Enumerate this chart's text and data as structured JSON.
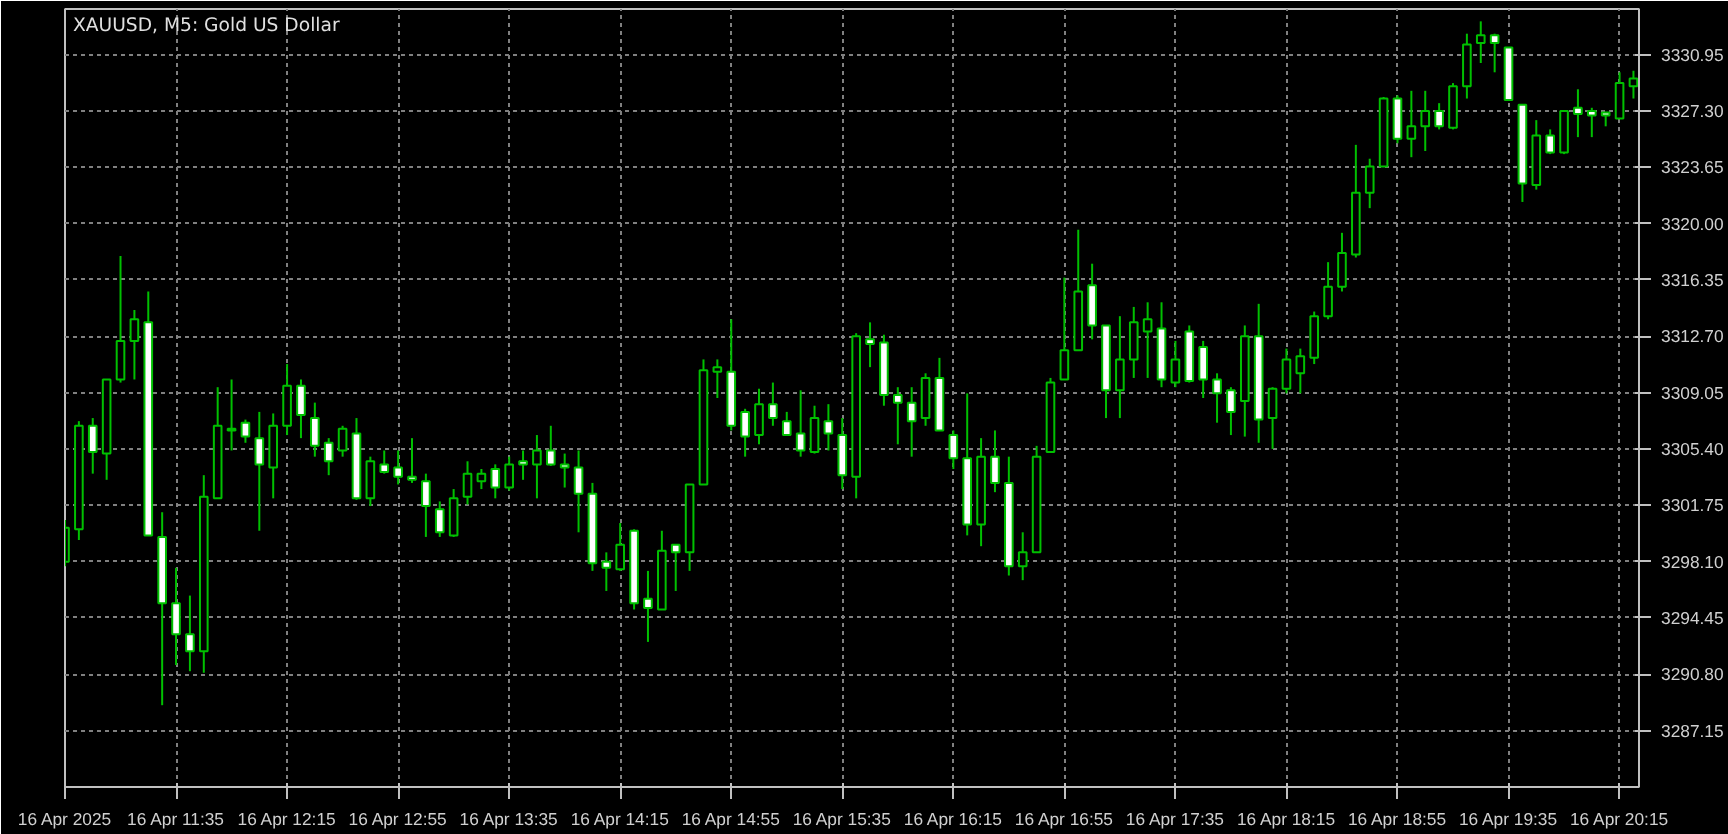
{
  "chart_data": {
    "type": "candlestick",
    "title": "XAUUSD, M5:  Gold US Dollar",
    "color": "#00c000",
    "x": [
      "2025-04-16T10:55",
      "2025-04-16T11:00",
      "2025-04-16T11:05",
      "2025-04-16T11:10",
      "2025-04-16T11:15",
      "2025-04-16T11:20",
      "2025-04-16T11:25",
      "2025-04-16T11:30",
      "2025-04-16T11:35",
      "2025-04-16T11:40",
      "2025-04-16T11:45",
      "2025-04-16T11:50",
      "2025-04-16T11:55",
      "2025-04-16T12:00",
      "2025-04-16T12:05",
      "2025-04-16T12:10",
      "2025-04-16T12:15",
      "2025-04-16T12:20",
      "2025-04-16T12:25",
      "2025-04-16T12:30",
      "2025-04-16T12:35",
      "2025-04-16T12:40",
      "2025-04-16T12:45",
      "2025-04-16T12:50",
      "2025-04-16T12:55",
      "2025-04-16T13:00",
      "2025-04-16T13:05",
      "2025-04-16T13:10",
      "2025-04-16T13:15",
      "2025-04-16T13:20",
      "2025-04-16T13:25",
      "2025-04-16T13:30",
      "2025-04-16T13:35",
      "2025-04-16T13:40",
      "2025-04-16T13:45",
      "2025-04-16T13:50",
      "2025-04-16T13:55",
      "2025-04-16T14:00",
      "2025-04-16T14:05",
      "2025-04-16T14:10",
      "2025-04-16T14:15",
      "2025-04-16T14:20",
      "2025-04-16T14:25",
      "2025-04-16T14:30",
      "2025-04-16T14:35",
      "2025-04-16T14:40",
      "2025-04-16T14:45",
      "2025-04-16T14:50",
      "2025-04-16T14:55",
      "2025-04-16T15:00",
      "2025-04-16T15:05",
      "2025-04-16T15:10",
      "2025-04-16T15:15",
      "2025-04-16T15:20",
      "2025-04-16T15:25",
      "2025-04-16T15:30",
      "2025-04-16T15:35",
      "2025-04-16T15:40",
      "2025-04-16T15:45",
      "2025-04-16T15:50",
      "2025-04-16T15:55",
      "2025-04-16T16:00",
      "2025-04-16T16:05",
      "2025-04-16T16:10",
      "2025-04-16T16:15",
      "2025-04-16T16:20",
      "2025-04-16T16:25",
      "2025-04-16T16:30",
      "2025-04-16T16:35",
      "2025-04-16T16:40",
      "2025-04-16T16:45",
      "2025-04-16T16:50",
      "2025-04-16T16:55",
      "2025-04-16T17:00",
      "2025-04-16T17:05",
      "2025-04-16T17:10",
      "2025-04-16T17:15",
      "2025-04-16T17:20",
      "2025-04-16T17:25",
      "2025-04-16T17:30",
      "2025-04-16T17:35",
      "2025-04-16T17:40",
      "2025-04-16T17:45",
      "2025-04-16T17:50",
      "2025-04-16T17:55",
      "2025-04-16T18:00",
      "2025-04-16T18:05",
      "2025-04-16T18:10",
      "2025-04-16T18:15",
      "2025-04-16T18:20",
      "2025-04-16T18:25",
      "2025-04-16T18:30",
      "2025-04-16T18:35",
      "2025-04-16T18:40",
      "2025-04-16T18:45",
      "2025-04-16T18:50",
      "2025-04-16T18:55",
      "2025-04-16T19:00",
      "2025-04-16T19:05",
      "2025-04-16T19:10",
      "2025-04-16T19:15",
      "2025-04-16T19:20",
      "2025-04-16T19:25",
      "2025-04-16T19:30",
      "2025-04-16T19:35",
      "2025-04-16T19:40",
      "2025-04-16T19:45",
      "2025-04-16T19:50",
      "2025-04-16T19:55",
      "2025-04-16T20:00",
      "2025-04-16T20:05",
      "2025-04-16T20:10",
      "2025-04-16T20:15",
      "2025-04-16T20:20"
    ],
    "ohlc": [
      [
        3298.1,
        3300.8,
        3297.8,
        3300.3
      ],
      [
        3300.2,
        3307.2,
        3299.5,
        3306.9
      ],
      [
        3306.9,
        3307.4,
        3303.8,
        3305.2
      ],
      [
        3305.1,
        3309.9,
        3303.4,
        3309.9
      ],
      [
        3309.9,
        3317.9,
        3309.7,
        3312.4
      ],
      [
        3312.4,
        3314.4,
        3309.9,
        3313.8
      ],
      [
        3313.6,
        3315.6,
        3299.8,
        3299.8
      ],
      [
        3299.7,
        3301.3,
        3288.8,
        3295.4
      ],
      [
        3295.4,
        3297.7,
        3291.4,
        3293.4
      ],
      [
        3293.4,
        3295.9,
        3291.0,
        3292.3
      ],
      [
        3292.3,
        3303.7,
        3290.9,
        3302.3
      ],
      [
        3302.2,
        3309.4,
        3302.2,
        3306.9
      ],
      [
        3306.7,
        3309.9,
        3305.3,
        3306.6
      ],
      [
        3307.1,
        3307.3,
        3305.8,
        3306.2
      ],
      [
        3306.1,
        3307.8,
        3300.1,
        3304.4
      ],
      [
        3304.2,
        3307.7,
        3302.2,
        3306.9
      ],
      [
        3306.9,
        3310.9,
        3306.3,
        3309.5
      ],
      [
        3309.5,
        3309.9,
        3306.1,
        3307.6
      ],
      [
        3307.4,
        3308.4,
        3304.9,
        3305.6
      ],
      [
        3305.8,
        3306.1,
        3303.7,
        3304.6
      ],
      [
        3305.3,
        3306.9,
        3304.9,
        3306.7
      ],
      [
        3306.4,
        3307.4,
        3302.1,
        3302.2
      ],
      [
        3302.2,
        3304.9,
        3301.7,
        3304.6
      ],
      [
        3304.4,
        3305.3,
        3303.8,
        3303.9
      ],
      [
        3304.2,
        3305.3,
        3303.1,
        3303.6
      ],
      [
        3303.6,
        3306.1,
        3303.2,
        3303.4
      ],
      [
        3303.3,
        3303.8,
        3299.7,
        3301.7
      ],
      [
        3301.5,
        3302.0,
        3299.7,
        3300.0
      ],
      [
        3299.8,
        3302.8,
        3299.7,
        3302.2
      ],
      [
        3302.3,
        3304.6,
        3301.8,
        3303.8
      ],
      [
        3303.3,
        3304.1,
        3302.8,
        3303.8
      ],
      [
        3304.1,
        3304.4,
        3302.2,
        3302.9
      ],
      [
        3302.9,
        3304.9,
        3302.7,
        3304.4
      ],
      [
        3304.6,
        3305.3,
        3303.4,
        3304.4
      ],
      [
        3304.4,
        3306.3,
        3302.2,
        3305.3
      ],
      [
        3305.3,
        3306.9,
        3304.3,
        3304.4
      ],
      [
        3304.4,
        3305.1,
        3302.9,
        3304.2
      ],
      [
        3304.2,
        3305.3,
        3300.0,
        3302.5
      ],
      [
        3302.5,
        3303.2,
        3297.5,
        3298.0
      ],
      [
        3298.1,
        3298.7,
        3296.2,
        3297.7
      ],
      [
        3297.6,
        3300.6,
        3297.5,
        3299.2
      ],
      [
        3300.1,
        3300.2,
        3295.0,
        3295.4
      ],
      [
        3295.7,
        3297.5,
        3292.9,
        3295.1
      ],
      [
        3295.0,
        3300.1,
        3295.0,
        3298.8
      ],
      [
        3299.2,
        3299.2,
        3296.2,
        3298.7
      ],
      [
        3298.7,
        3303.1,
        3297.5,
        3303.1
      ],
      [
        3303.1,
        3311.2,
        3303.1,
        3310.5
      ],
      [
        3310.4,
        3311.2,
        3308.7,
        3310.7
      ],
      [
        3310.4,
        3313.8,
        3306.6,
        3306.9
      ],
      [
        3307.8,
        3308.0,
        3304.9,
        3306.2
      ],
      [
        3306.3,
        3309.3,
        3305.7,
        3308.3
      ],
      [
        3308.3,
        3309.7,
        3306.9,
        3307.4
      ],
      [
        3307.2,
        3307.8,
        3306.3,
        3306.3
      ],
      [
        3306.4,
        3309.2,
        3304.9,
        3305.3
      ],
      [
        3305.2,
        3308.2,
        3305.1,
        3307.4
      ],
      [
        3307.2,
        3308.3,
        3305.3,
        3306.4
      ],
      [
        3306.3,
        3307.4,
        3302.8,
        3303.7
      ],
      [
        3303.6,
        3312.9,
        3302.2,
        3312.7
      ],
      [
        3312.5,
        3313.6,
        3310.7,
        3312.2
      ],
      [
        3312.3,
        3312.8,
        3308.2,
        3308.9
      ],
      [
        3308.9,
        3309.4,
        3305.7,
        3308.4
      ],
      [
        3308.4,
        3309.4,
        3304.9,
        3307.2
      ],
      [
        3307.4,
        3310.3,
        3306.9,
        3310.0
      ],
      [
        3310.0,
        3311.3,
        3306.6,
        3306.6
      ],
      [
        3306.3,
        3306.6,
        3304.1,
        3304.8
      ],
      [
        3304.8,
        3309.0,
        3299.8,
        3300.5
      ],
      [
        3300.5,
        3306.1,
        3299.1,
        3304.9
      ],
      [
        3304.9,
        3306.6,
        3302.6,
        3303.2
      ],
      [
        3303.2,
        3304.9,
        3297.2,
        3297.8
      ],
      [
        3297.8,
        3300.0,
        3296.9,
        3298.7
      ],
      [
        3298.7,
        3305.6,
        3298.7,
        3304.9
      ],
      [
        3305.2,
        3310.0,
        3305.2,
        3309.7
      ],
      [
        3309.9,
        3316.5,
        3309.9,
        3311.8
      ],
      [
        3311.8,
        3319.6,
        3311.8,
        3315.6
      ],
      [
        3316.0,
        3317.4,
        3312.5,
        3313.4
      ],
      [
        3313.4,
        3313.4,
        3307.4,
        3309.2
      ],
      [
        3309.2,
        3314.0,
        3307.4,
        3311.2
      ],
      [
        3311.2,
        3314.6,
        3310.0,
        3313.6
      ],
      [
        3313.0,
        3314.9,
        3310.0,
        3313.8
      ],
      [
        3313.2,
        3314.9,
        3309.4,
        3309.9
      ],
      [
        3309.7,
        3312.4,
        3309.4,
        3311.2
      ],
      [
        3313.0,
        3313.4,
        3309.7,
        3309.8
      ],
      [
        3312.0,
        3312.4,
        3308.7,
        3309.9
      ],
      [
        3309.9,
        3310.3,
        3307.1,
        3309.0
      ],
      [
        3309.2,
        3309.4,
        3306.3,
        3307.8
      ],
      [
        3308.5,
        3313.4,
        3306.2,
        3312.7
      ],
      [
        3312.7,
        3314.8,
        3305.8,
        3307.3
      ],
      [
        3307.4,
        3309.4,
        3305.4,
        3309.3
      ],
      [
        3309.3,
        3311.9,
        3309.0,
        3311.2
      ],
      [
        3310.3,
        3311.9,
        3309.0,
        3311.4
      ],
      [
        3311.3,
        3314.3,
        3310.9,
        3314.0
      ],
      [
        3314.0,
        3317.5,
        3313.8,
        3315.9
      ],
      [
        3315.9,
        3319.4,
        3315.6,
        3318.1
      ],
      [
        3318.0,
        3325.1,
        3317.8,
        3322.0
      ],
      [
        3322.0,
        3324.2,
        3321.0,
        3323.7
      ],
      [
        3323.7,
        3328.2,
        3323.7,
        3328.1
      ],
      [
        3328.1,
        3328.3,
        3325.2,
        3325.5
      ],
      [
        3325.5,
        3328.6,
        3324.3,
        3326.3
      ],
      [
        3326.3,
        3328.6,
        3324.7,
        3327.3
      ],
      [
        3327.3,
        3327.8,
        3326.1,
        3326.3
      ],
      [
        3326.2,
        3329.1,
        3326.1,
        3328.9
      ],
      [
        3328.9,
        3332.3,
        3328.1,
        3331.6
      ],
      [
        3331.7,
        3333.1,
        3330.4,
        3332.2
      ],
      [
        3332.2,
        3332.3,
        3329.8,
        3331.7
      ],
      [
        3331.4,
        3331.4,
        3328.0,
        3328.0
      ],
      [
        3327.7,
        3327.7,
        3321.4,
        3322.6
      ],
      [
        3322.5,
        3326.7,
        3322.2,
        3325.7
      ],
      [
        3325.7,
        3326.1,
        3324.5,
        3324.6
      ],
      [
        3324.6,
        3327.3,
        3324.5,
        3327.3
      ],
      [
        3327.5,
        3328.7,
        3325.6,
        3327.1
      ],
      [
        3327.3,
        3327.5,
        3325.6,
        3327.0
      ],
      [
        3327.2,
        3327.2,
        3326.3,
        3327.0
      ],
      [
        3326.8,
        3329.8,
        3326.8,
        3329.1
      ],
      [
        3328.9,
        3329.9,
        3328.1,
        3329.4
      ]
    ],
    "xlim": [
      "2025-04-16T10:55",
      "2025-04-16T20:22"
    ],
    "xticks": [
      {
        "value": "2025-04-16T10:55",
        "label": "16 Apr 2025"
      },
      {
        "value": "2025-04-16T11:35",
        "label": "16 Apr 11:35"
      },
      {
        "value": "2025-04-16T12:15",
        "label": "16 Apr 12:15"
      },
      {
        "value": "2025-04-16T12:55",
        "label": "16 Apr 12:55"
      },
      {
        "value": "2025-04-16T13:35",
        "label": "16 Apr 13:35"
      },
      {
        "value": "2025-04-16T14:15",
        "label": "16 Apr 14:15"
      },
      {
        "value": "2025-04-16T14:55",
        "label": "16 Apr 14:55"
      },
      {
        "value": "2025-04-16T15:35",
        "label": "16 Apr 15:35"
      },
      {
        "value": "2025-04-16T16:15",
        "label": "16 Apr 16:15"
      },
      {
        "value": "2025-04-16T16:55",
        "label": "16 Apr 16:55"
      },
      {
        "value": "2025-04-16T17:35",
        "label": "16 Apr 17:35"
      },
      {
        "value": "2025-04-16T18:15",
        "label": "16 Apr 18:15"
      },
      {
        "value": "2025-04-16T18:55",
        "label": "16 Apr 18:55"
      },
      {
        "value": "2025-04-16T19:35",
        "label": "16 Apr 19:35"
      },
      {
        "value": "2025-04-16T20:15",
        "label": "16 Apr 20:15"
      }
    ],
    "ylim": [
      3283.5,
      3333.9
    ],
    "yticks": [
      3287.15,
      {
        "value": 3290.8,
        "label": "3290.80"
      },
      3294.45,
      {
        "value": 3298.1,
        "label": "3298.10"
      },
      3301.75,
      {
        "value": 3305.4,
        "label": "3305.40"
      },
      3309.05,
      {
        "value": 3312.7,
        "label": "3312.70"
      },
      3316.35,
      {
        "value": 3320.0,
        "label": "3320.00"
      },
      3323.65,
      {
        "value": 3327.3,
        "label": "3327.30"
      },
      3330.95
    ],
    "grid": true
  }
}
